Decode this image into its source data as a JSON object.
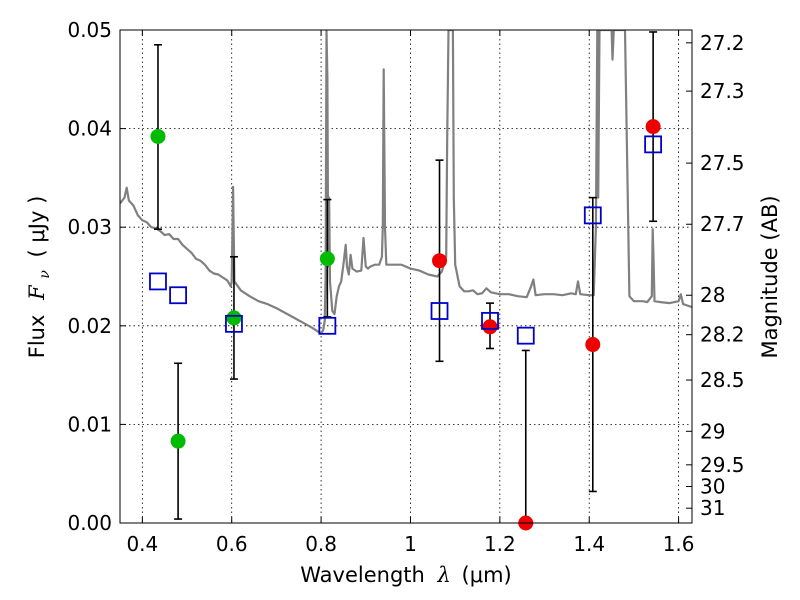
{
  "chart_data": {
    "type": "scatter",
    "xlabel": "Wavelength",
    "xlabel_symbol": "λ",
    "xlabel_unit": "(μm)",
    "ylabel": "Flux",
    "ylabel_symbol": "F",
    "ylabel_subscript": "ν",
    "ylabel_unit": "( μJy )",
    "y2label": "Magnitude (AB)",
    "xlim": [
      0.35,
      1.63
    ],
    "ylim": [
      0.0,
      0.05
    ],
    "grid": true,
    "x_ticks": [
      {
        "value": 0.4,
        "label": "0.4"
      },
      {
        "value": 0.6,
        "label": "0.6"
      },
      {
        "value": 0.8,
        "label": "0.8"
      },
      {
        "value": 1.0,
        "label": "1"
      },
      {
        "value": 1.2,
        "label": "1.2"
      },
      {
        "value": 1.4,
        "label": "1.4"
      },
      {
        "value": 1.6,
        "label": "1.6"
      }
    ],
    "y_ticks": [
      {
        "value": 0.0,
        "label": "0.00"
      },
      {
        "value": 0.01,
        "label": "0.01"
      },
      {
        "value": 0.02,
        "label": "0.02"
      },
      {
        "value": 0.03,
        "label": "0.03"
      },
      {
        "value": 0.04,
        "label": "0.04"
      },
      {
        "value": 0.05,
        "label": "0.05"
      }
    ],
    "mag_ticks": [
      {
        "flux": 0.0487,
        "label": "27.2"
      },
      {
        "flux": 0.0438,
        "label": "27.3"
      },
      {
        "flux": 0.0365,
        "label": "27.5"
      },
      {
        "flux": 0.0303,
        "label": "27.7"
      },
      {
        "flux": 0.0231,
        "label": "28"
      },
      {
        "flux": 0.0191,
        "label": "28.2"
      },
      {
        "flux": 0.0145,
        "label": "28.5"
      },
      {
        "flux": 0.0093,
        "label": "29"
      },
      {
        "flux": 0.0059,
        "label": "29.5"
      },
      {
        "flux": 0.0037,
        "label": "30"
      },
      {
        "flux": 0.0015,
        "label": "31"
      }
    ],
    "series": [
      {
        "name": "Model SED",
        "kind": "line",
        "color": "#808080",
        "points": [
          [
            0.35,
            0.0324
          ],
          [
            0.36,
            0.033
          ],
          [
            0.365,
            0.034
          ],
          [
            0.37,
            0.0327
          ],
          [
            0.38,
            0.0322
          ],
          [
            0.39,
            0.0312
          ],
          [
            0.4,
            0.0307
          ],
          [
            0.41,
            0.0305
          ],
          [
            0.42,
            0.03
          ],
          [
            0.43,
            0.0299
          ],
          [
            0.44,
            0.0296
          ],
          [
            0.45,
            0.0292
          ],
          [
            0.46,
            0.0293
          ],
          [
            0.47,
            0.0288
          ],
          [
            0.48,
            0.0288
          ],
          [
            0.49,
            0.0282
          ],
          [
            0.5,
            0.0278
          ],
          [
            0.51,
            0.0274
          ],
          [
            0.52,
            0.0268
          ],
          [
            0.53,
            0.0266
          ],
          [
            0.54,
            0.0262
          ],
          [
            0.55,
            0.0256
          ],
          [
            0.56,
            0.0253
          ],
          [
            0.57,
            0.0252
          ],
          [
            0.58,
            0.0249
          ],
          [
            0.59,
            0.0246
          ],
          [
            0.598,
            0.024
          ],
          [
            0.6,
            0.0245
          ],
          [
            0.602,
            0.0305
          ],
          [
            0.603,
            0.0341
          ],
          [
            0.604,
            0.031
          ],
          [
            0.606,
            0.0245
          ],
          [
            0.62,
            0.0236
          ],
          [
            0.64,
            0.023
          ],
          [
            0.66,
            0.0225
          ],
          [
            0.68,
            0.0222
          ],
          [
            0.7,
            0.0218
          ],
          [
            0.72,
            0.0213
          ],
          [
            0.74,
            0.0208
          ],
          [
            0.76,
            0.0203
          ],
          [
            0.78,
            0.0198
          ],
          [
            0.79,
            0.0195
          ],
          [
            0.8,
            0.0192
          ],
          [
            0.805,
            0.0196
          ],
          [
            0.808,
            0.0205
          ],
          [
            0.81,
            0.025
          ],
          [
            0.812,
            0.05
          ],
          [
            0.814,
            0.045
          ],
          [
            0.816,
            0.026
          ],
          [
            0.818,
            0.033
          ],
          [
            0.82,
            0.0245
          ],
          [
            0.825,
            0.0215
          ],
          [
            0.83,
            0.0212
          ],
          [
            0.835,
            0.023
          ],
          [
            0.84,
            0.024
          ],
          [
            0.845,
            0.0245
          ],
          [
            0.85,
            0.0262
          ],
          [
            0.855,
            0.0282
          ],
          [
            0.858,
            0.026
          ],
          [
            0.862,
            0.0252
          ],
          [
            0.866,
            0.0272
          ],
          [
            0.87,
            0.0258
          ],
          [
            0.88,
            0.0255
          ],
          [
            0.89,
            0.0256
          ],
          [
            0.895,
            0.0289
          ],
          [
            0.9,
            0.026
          ],
          [
            0.905,
            0.0258
          ],
          [
            0.91,
            0.026
          ],
          [
            0.92,
            0.0262
          ],
          [
            0.93,
            0.0262
          ],
          [
            0.936,
            0.027
          ],
          [
            0.938,
            0.03
          ],
          [
            0.94,
            0.046
          ],
          [
            0.943,
            0.03
          ],
          [
            0.946,
            0.0262
          ],
          [
            0.96,
            0.0262
          ],
          [
            0.98,
            0.0262
          ],
          [
            1.0,
            0.0258
          ],
          [
            1.02,
            0.0256
          ],
          [
            1.04,
            0.0252
          ],
          [
            1.06,
            0.025
          ],
          [
            1.07,
            0.0255
          ],
          [
            1.08,
            0.027
          ],
          [
            1.082,
            0.038
          ],
          [
            1.085,
            0.05
          ],
          [
            1.095,
            0.05
          ],
          [
            1.097,
            0.033
          ],
          [
            1.1,
            0.0262
          ],
          [
            1.11,
            0.024
          ],
          [
            1.12,
            0.0235
          ],
          [
            1.13,
            0.0235
          ],
          [
            1.14,
            0.0236
          ],
          [
            1.15,
            0.0232
          ],
          [
            1.16,
            0.0233
          ],
          [
            1.17,
            0.0238
          ],
          [
            1.18,
            0.0234
          ],
          [
            1.2,
            0.0232
          ],
          [
            1.22,
            0.0232
          ],
          [
            1.24,
            0.023
          ],
          [
            1.26,
            0.0229
          ],
          [
            1.27,
            0.024
          ],
          [
            1.275,
            0.0247
          ],
          [
            1.28,
            0.0231
          ],
          [
            1.3,
            0.0232
          ],
          [
            1.32,
            0.0232
          ],
          [
            1.34,
            0.0231
          ],
          [
            1.36,
            0.0233
          ],
          [
            1.37,
            0.0232
          ],
          [
            1.375,
            0.0245
          ],
          [
            1.38,
            0.0232
          ],
          [
            1.4,
            0.0231
          ],
          [
            1.41,
            0.0231
          ],
          [
            1.415,
            0.03
          ],
          [
            1.418,
            0.05
          ],
          [
            1.42,
            0.033
          ],
          [
            1.423,
            0.05
          ],
          [
            1.44,
            0.05
          ],
          [
            1.45,
            0.05
          ],
          [
            1.452,
            0.047
          ],
          [
            1.455,
            0.05
          ],
          [
            1.48,
            0.05
          ],
          [
            1.49,
            0.023
          ],
          [
            1.5,
            0.0225
          ],
          [
            1.52,
            0.0225
          ],
          [
            1.53,
            0.0224
          ],
          [
            1.54,
            0.023
          ],
          [
            1.542,
            0.0298
          ],
          [
            1.544,
            0.0265
          ],
          [
            1.546,
            0.0225
          ],
          [
            1.56,
            0.0224
          ],
          [
            1.58,
            0.0223
          ],
          [
            1.6,
            0.0225
          ],
          [
            1.605,
            0.0232
          ],
          [
            1.61,
            0.0222
          ],
          [
            1.63,
            0.0219
          ]
        ]
      },
      {
        "name": "Green photometry",
        "kind": "point",
        "color": "#00bb00",
        "points": [
          {
            "x": 0.435,
            "y": 0.0392,
            "err_low": 0.0298,
            "err_high": 0.0485
          },
          {
            "x": 0.48,
            "y": 0.0083,
            "err_low": 0.0004,
            "err_high": 0.0162
          },
          {
            "x": 0.605,
            "y": 0.0208,
            "err_low": 0.0146,
            "err_high": 0.027
          },
          {
            "x": 0.814,
            "y": 0.0268,
            "err_low": 0.0209,
            "err_high": 0.0328
          }
        ]
      },
      {
        "name": "Red photometry",
        "kind": "point",
        "color": "#ee0000",
        "points": [
          {
            "x": 1.065,
            "y": 0.0266,
            "err_low": 0.0164,
            "err_high": 0.0368
          },
          {
            "x": 1.178,
            "y": 0.0199,
            "err_low": 0.0177,
            "err_high": 0.0223
          },
          {
            "x": 1.258,
            "y": 0.0,
            "err_low": 0.0,
            "err_high": 0.0175
          },
          {
            "x": 1.408,
            "y": 0.0181,
            "err_low": 0.0032,
            "err_high": 0.033
          },
          {
            "x": 1.543,
            "y": 0.0402,
            "err_low": 0.0306,
            "err_high": 0.0498
          }
        ]
      },
      {
        "name": "Model photometry",
        "kind": "square",
        "color": "#0000cc",
        "points": [
          {
            "x": 0.435,
            "y": 0.0245
          },
          {
            "x": 0.48,
            "y": 0.0231
          },
          {
            "x": 0.605,
            "y": 0.0202
          },
          {
            "x": 0.814,
            "y": 0.02
          },
          {
            "x": 1.065,
            "y": 0.0215
          },
          {
            "x": 1.178,
            "y": 0.0205
          },
          {
            "x": 1.258,
            "y": 0.019
          },
          {
            "x": 1.408,
            "y": 0.0312
          },
          {
            "x": 1.543,
            "y": 0.0384
          }
        ]
      }
    ]
  }
}
